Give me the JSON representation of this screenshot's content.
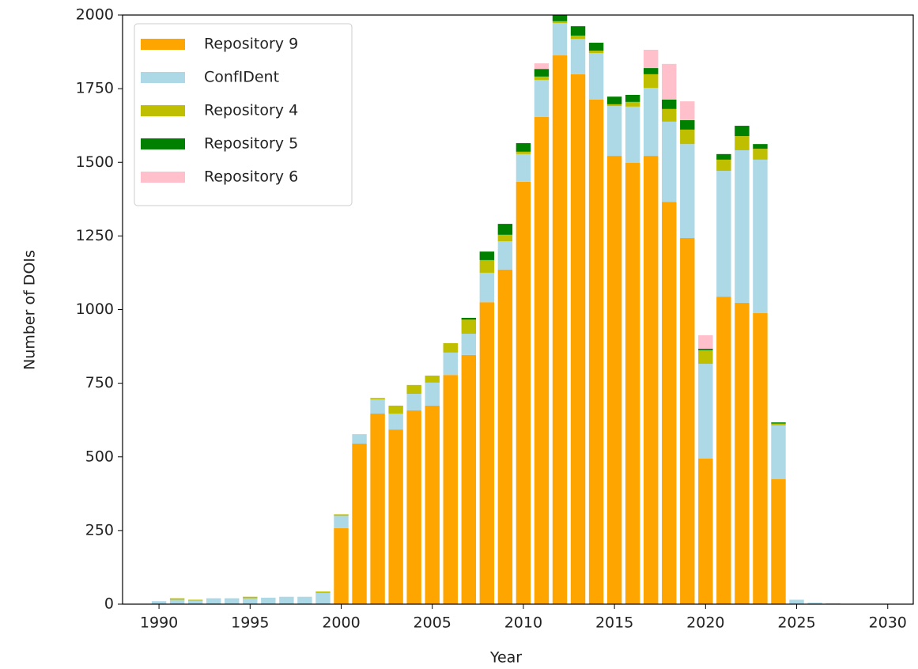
{
  "chart_data": {
    "type": "bar",
    "stacked": true,
    "x_label": "Year",
    "y_label": "Number of DOIs",
    "x": [
      1990,
      1991,
      1992,
      1993,
      1994,
      1995,
      1996,
      1997,
      1998,
      1999,
      2000,
      2001,
      2002,
      2003,
      2004,
      2005,
      2006,
      2007,
      2008,
      2009,
      2010,
      2011,
      2012,
      2013,
      2014,
      2015,
      2016,
      2017,
      2018,
      2019,
      2020,
      2021,
      2022,
      2023,
      2024,
      2025,
      2026,
      2027
    ],
    "series": [
      {
        "name": "Repository 9",
        "color": "#ffa500",
        "values": [
          0,
          0,
          0,
          0,
          0,
          0,
          0,
          0,
          0,
          0,
          258,
          545,
          647,
          593,
          658,
          674,
          778,
          846,
          1025,
          1136,
          1434,
          1654,
          1863,
          1799,
          1713,
          1522,
          1498,
          1522,
          1366,
          1243,
          494,
          1044,
          1023,
          988,
          425,
          0,
          0,
          0
        ]
      },
      {
        "name": "ConfIDent",
        "color": "#add8e6",
        "values": [
          10,
          15,
          12,
          20,
          20,
          20,
          22,
          25,
          25,
          38,
          42,
          32,
          48,
          54,
          56,
          78,
          76,
          72,
          100,
          96,
          94,
          126,
          110,
          120,
          158,
          169,
          191,
          231,
          272,
          319,
          322,
          427,
          518,
          521,
          182,
          15,
          5,
          3
        ]
      },
      {
        "name": "Repository 4",
        "color": "#bfbf00",
        "values": [
          0,
          5,
          3,
          0,
          0,
          5,
          0,
          0,
          0,
          5,
          5,
          0,
          5,
          27,
          30,
          24,
          32,
          48,
          43,
          22,
          8,
          11,
          6,
          11,
          8,
          6,
          16,
          46,
          43,
          49,
          46,
          38,
          48,
          37,
          6,
          0,
          0,
          0
        ]
      },
      {
        "name": "Repository 5",
        "color": "#008000",
        "values": [
          0,
          0,
          0,
          0,
          0,
          0,
          0,
          0,
          0,
          0,
          0,
          0,
          0,
          0,
          0,
          0,
          0,
          6,
          29,
          37,
          29,
          26,
          31,
          32,
          27,
          26,
          24,
          21,
          32,
          32,
          5,
          19,
          35,
          16,
          4,
          0,
          0,
          0
        ]
      },
      {
        "name": "Repository 6",
        "color": "#ffc0cb",
        "values": [
          0,
          0,
          0,
          0,
          0,
          0,
          0,
          0,
          0,
          0,
          0,
          0,
          0,
          0,
          0,
          0,
          0,
          0,
          0,
          0,
          0,
          19,
          0,
          0,
          0,
          0,
          0,
          62,
          121,
          64,
          46,
          0,
          0,
          0,
          0,
          0,
          0,
          0
        ]
      }
    ],
    "xlim": [
      1988,
      2031.4
    ],
    "xticks": [
      1990,
      1995,
      2000,
      2005,
      2010,
      2015,
      2020,
      2025,
      2030
    ],
    "ylim": [
      0,
      2000
    ],
    "yticks": [
      0,
      250,
      500,
      750,
      1000,
      1250,
      1500,
      1750,
      2000
    ],
    "bar_width": 0.8,
    "legend": "upper left"
  }
}
